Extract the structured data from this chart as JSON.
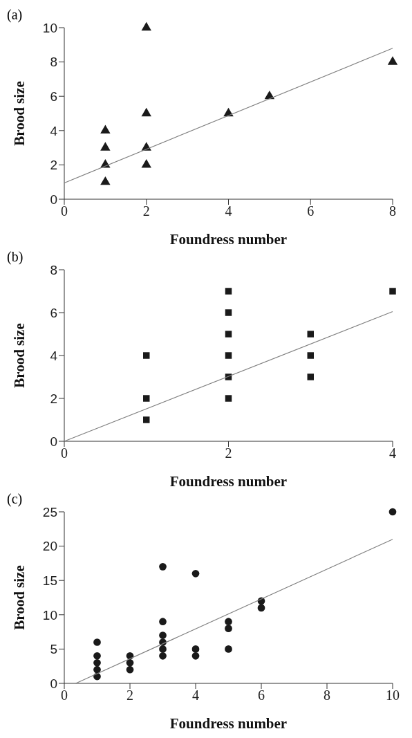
{
  "chart_data": [
    {
      "type": "scatter",
      "title": "(a)",
      "xlabel": "Foundress number",
      "ylabel": "Brood size",
      "xlim": [
        0,
        8
      ],
      "xticks": [
        0,
        2,
        4,
        6,
        8
      ],
      "ylim": [
        0,
        10
      ],
      "yticks": [
        0,
        2,
        4,
        6,
        8,
        10
      ],
      "grid": false,
      "series": [
        {
          "marker": "triangle",
          "color": "#1a1a1a",
          "x": [
            1,
            1,
            1,
            1,
            2,
            2,
            2,
            2,
            4,
            5,
            8
          ],
          "values": [
            1,
            2,
            3,
            4,
            2,
            3,
            5,
            10,
            5,
            6,
            8
          ]
        },
        {
          "type": "line",
          "marker": "none",
          "color": "#808080",
          "x": [
            0,
            8
          ],
          "values": [
            0.95,
            8.8
          ]
        }
      ]
    },
    {
      "type": "scatter",
      "title": "(b)",
      "xlabel": "Foundress number",
      "ylabel": "Brood size",
      "xlim": [
        0,
        4
      ],
      "xticks": [
        0,
        2,
        4
      ],
      "ylim": [
        0,
        8
      ],
      "yticks": [
        0,
        2,
        4,
        6,
        8
      ],
      "grid": false,
      "series": [
        {
          "marker": "square",
          "color": "#1a1a1a",
          "x": [
            1,
            1,
            1,
            2,
            2,
            2,
            2,
            2,
            2,
            3,
            3,
            3,
            4
          ],
          "values": [
            1,
            2,
            4,
            2,
            3,
            4,
            5,
            6,
            7,
            3,
            4,
            5,
            7
          ]
        },
        {
          "type": "line",
          "marker": "none",
          "color": "#808080",
          "x": [
            0,
            4
          ],
          "values": [
            0,
            6.05
          ]
        }
      ]
    },
    {
      "type": "scatter",
      "title": "(c)",
      "xlabel": "Foundress number",
      "ylabel": "Brood size",
      "xlim": [
        0,
        10
      ],
      "xticks": [
        0,
        2,
        4,
        6,
        8,
        10
      ],
      "ylim": [
        0,
        25
      ],
      "yticks": [
        0,
        5,
        10,
        15,
        20,
        25
      ],
      "grid": false,
      "series": [
        {
          "marker": "circle",
          "color": "#1a1a1a",
          "x": [
            1,
            1,
            1,
            1,
            1,
            2,
            2,
            2,
            3,
            3,
            3,
            3,
            3,
            3,
            4,
            4,
            4,
            5,
            5,
            5,
            6,
            6,
            10
          ],
          "values": [
            1,
            2,
            3,
            4,
            6,
            2,
            3,
            4,
            4,
            5,
            6,
            7,
            9,
            17,
            4,
            5,
            16,
            5,
            8,
            9,
            11,
            12,
            25
          ]
        },
        {
          "type": "line",
          "marker": "none",
          "color": "#808080",
          "x": [
            0.35,
            10
          ],
          "values": [
            0,
            21
          ]
        }
      ]
    }
  ]
}
